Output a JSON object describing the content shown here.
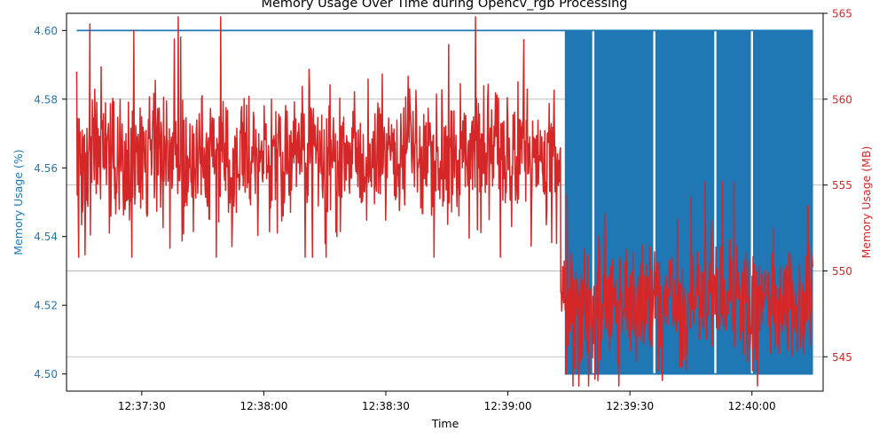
{
  "chart_data": {
    "type": "line",
    "title": "Memory Usage Over Time during Opencv_rgb Processing",
    "xlabel": "Time",
    "ylabel_left": "Memory Usage (%)",
    "ylabel_right": "Memory Usage (MB)",
    "x_range": [
      "12:37:14",
      "12:40:15"
    ],
    "x_ticks": [
      "12:37:30",
      "12:38:00",
      "12:38:30",
      "12:39:00",
      "12:39:30",
      "12:40:00"
    ],
    "y_left_range": [
      4.495,
      4.605
    ],
    "y_left_ticks": [
      "4.50",
      "4.52",
      "4.54",
      "4.56",
      "4.58",
      "4.60"
    ],
    "y_right_range": [
      543,
      565
    ],
    "y_right_ticks": [
      "545",
      "550",
      "555",
      "560",
      "565"
    ],
    "grid": "horizontal (right axis)",
    "colors": {
      "percent": "#1f77b4",
      "mb": "#d62728",
      "grid": "#b0b0b0",
      "axis": "#000000"
    },
    "series": [
      {
        "axis": "left",
        "segments": [
          {
            "from": "12:37:14",
            "to": "12:39:14",
            "values": [
              4.6
            ],
            "pattern": "constant"
          },
          {
            "from": "12:39:14",
            "to": "12:40:15",
            "values": [
              4.5,
              4.6
            ],
            "pattern": "alternating"
          }
        ],
        "gaps": [
          "12:39:21",
          "12:39:36",
          "12:39:51",
          "12:40:00"
        ]
      },
      {
        "axis": "right",
        "segments": [
          {
            "from": "12:37:14",
            "to": "12:39:13",
            "mean": 556.7,
            "spread": 2.4,
            "min": 550.8,
            "max": 564.8
          },
          {
            "from": "12:39:13",
            "to": "12:40:15",
            "mean": 548.2,
            "spread": 2.2,
            "min": 543.3,
            "max": 555.2
          }
        ],
        "peaks": [
          {
            "x": "12:37:14",
            "y": 561.6
          },
          {
            "x": "12:37:28",
            "y": 564
          },
          {
            "x": "12:37:38",
            "y": 563.5
          },
          {
            "x": "12:38:52",
            "y": 564.8
          },
          {
            "x": "12:39:12",
            "y": 563.1
          },
          {
            "x": "12:39:45",
            "y": 554.3
          }
        ],
        "troughs": [
          {
            "x": "12:37:22",
            "y": 552.2
          },
          {
            "x": "12:38:12",
            "y": 550.8
          },
          {
            "x": "12:38:18",
            "y": 552
          },
          {
            "x": "12:39:12",
            "y": 551.6
          },
          {
            "x": "12:39:16",
            "y": 543.3
          }
        ]
      }
    ]
  }
}
